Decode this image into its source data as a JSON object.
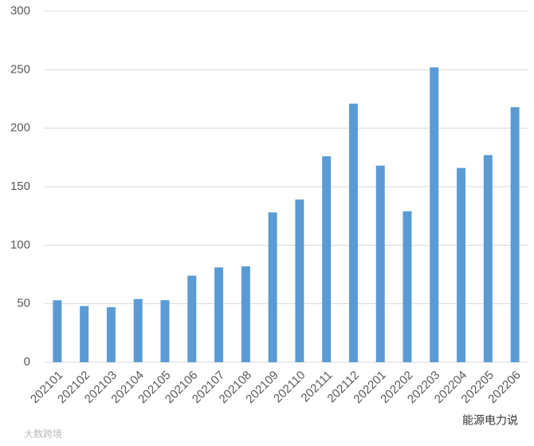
{
  "chart_data": {
    "type": "bar",
    "categories": [
      "202101",
      "202102",
      "202103",
      "202104",
      "202105",
      "202106",
      "202107",
      "202108",
      "202109",
      "202110",
      "202111",
      "202112",
      "202201",
      "202202",
      "202203",
      "202204",
      "202205",
      "202206"
    ],
    "values": [
      53,
      48,
      47,
      54,
      53,
      74,
      81,
      82,
      128,
      139,
      176,
      221,
      168,
      129,
      252,
      166,
      177,
      218
    ],
    "color": "#5b9bd5",
    "ylim": [
      0,
      300
    ],
    "yticks": [
      0,
      50,
      100,
      150,
      200,
      250,
      300
    ],
    "grid": true
  },
  "watermarks": [
    "能源电力说",
    "大数跨境"
  ]
}
